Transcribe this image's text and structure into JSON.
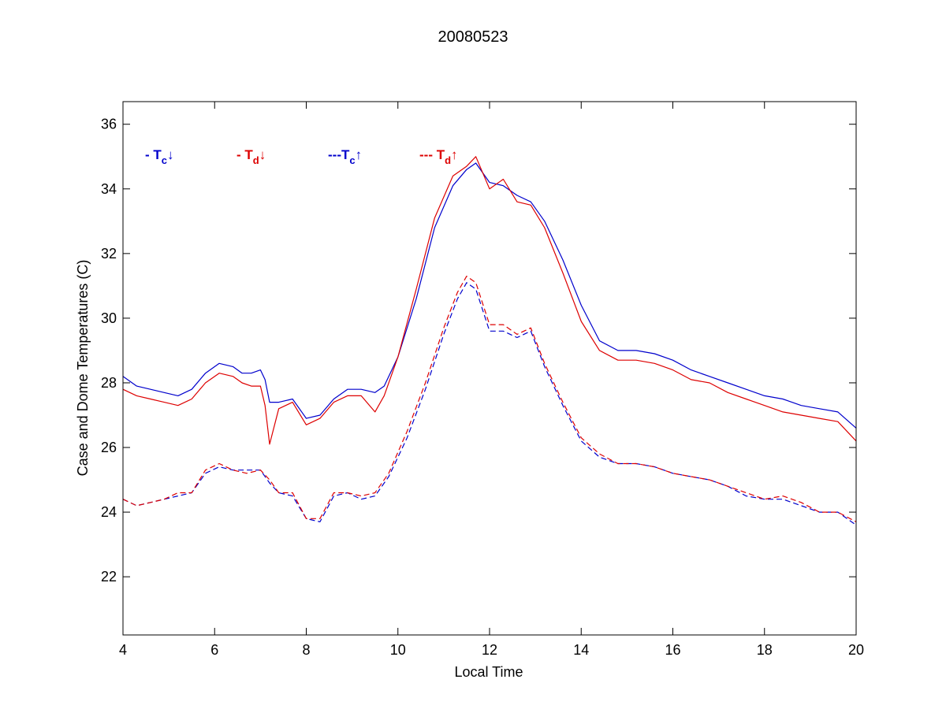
{
  "chart_data": {
    "type": "line",
    "title": "20080523",
    "xlabel": "Local Time",
    "ylabel": "Case and Dome Temperatures (C)",
    "xlim": [
      4,
      20
    ],
    "ylim": [
      20.2,
      36.7
    ],
    "xticks": [
      4,
      6,
      8,
      10,
      12,
      14,
      16,
      18,
      20
    ],
    "yticks": [
      22,
      24,
      26,
      28,
      30,
      32,
      34,
      36
    ],
    "grid": false,
    "legend_placement": "top-left inside",
    "series": [
      {
        "legend": {
          "prefix": "- T",
          "sub": "c",
          "arrow": "↓"
        },
        "color": "#0000cc",
        "dash": "solid",
        "x": [
          4.0,
          4.3,
          4.6,
          4.9,
          5.2,
          5.5,
          5.8,
          6.1,
          6.4,
          6.6,
          6.8,
          7.0,
          7.1,
          7.2,
          7.4,
          7.7,
          8.0,
          8.3,
          8.6,
          8.9,
          9.2,
          9.5,
          9.7,
          10.0,
          10.4,
          10.8,
          11.2,
          11.5,
          11.7,
          12.0,
          12.3,
          12.6,
          12.9,
          13.2,
          13.6,
          14.0,
          14.4,
          14.8,
          15.2,
          15.6,
          16.0,
          16.4,
          16.8,
          17.2,
          17.6,
          18.0,
          18.4,
          18.8,
          19.2,
          19.6,
          20.0
        ],
        "y": [
          28.2,
          27.9,
          27.8,
          27.7,
          27.6,
          27.8,
          28.3,
          28.6,
          28.5,
          28.3,
          28.3,
          28.4,
          28.1,
          27.4,
          27.4,
          27.5,
          26.9,
          27.0,
          27.5,
          27.8,
          27.8,
          27.7,
          27.9,
          28.8,
          30.6,
          32.8,
          34.1,
          34.6,
          34.8,
          34.2,
          34.1,
          33.8,
          33.6,
          33.0,
          31.8,
          30.4,
          29.3,
          29.0,
          29.0,
          28.9,
          28.7,
          28.4,
          28.2,
          28.0,
          27.8,
          27.6,
          27.5,
          27.3,
          27.2,
          27.1,
          26.6
        ]
      },
      {
        "legend": {
          "prefix": "- T",
          "sub": "d",
          "arrow": "↓"
        },
        "color": "#dd0000",
        "dash": "solid",
        "x": [
          4.0,
          4.3,
          4.6,
          4.9,
          5.2,
          5.5,
          5.8,
          6.1,
          6.4,
          6.6,
          6.8,
          7.0,
          7.1,
          7.2,
          7.4,
          7.7,
          8.0,
          8.3,
          8.6,
          8.9,
          9.2,
          9.5,
          9.7,
          10.0,
          10.4,
          10.8,
          11.2,
          11.5,
          11.7,
          12.0,
          12.3,
          12.6,
          12.9,
          13.2,
          13.6,
          14.0,
          14.4,
          14.8,
          15.2,
          15.6,
          16.0,
          16.4,
          16.8,
          17.2,
          17.6,
          18.0,
          18.4,
          18.8,
          19.2,
          19.6,
          20.0
        ],
        "y": [
          27.8,
          27.6,
          27.5,
          27.4,
          27.3,
          27.5,
          28.0,
          28.3,
          28.2,
          28.0,
          27.9,
          27.9,
          27.3,
          26.1,
          27.2,
          27.4,
          26.7,
          26.9,
          27.4,
          27.6,
          27.6,
          27.1,
          27.6,
          28.8,
          30.9,
          33.1,
          34.4,
          34.7,
          35.0,
          34.0,
          34.3,
          33.6,
          33.5,
          32.8,
          31.4,
          29.9,
          29.0,
          28.7,
          28.7,
          28.6,
          28.4,
          28.1,
          28.0,
          27.7,
          27.5,
          27.3,
          27.1,
          27.0,
          26.9,
          26.8,
          26.2
        ]
      },
      {
        "legend": {
          "prefix": "---T",
          "sub": "c",
          "arrow": "↑"
        },
        "color": "#0000cc",
        "dash": "dashed",
        "x": [
          4.0,
          4.3,
          4.6,
          4.9,
          5.2,
          5.5,
          5.8,
          6.1,
          6.4,
          6.7,
          7.0,
          7.2,
          7.4,
          7.7,
          8.0,
          8.3,
          8.6,
          8.9,
          9.2,
          9.5,
          9.8,
          10.2,
          10.6,
          11.0,
          11.3,
          11.5,
          11.7,
          12.0,
          12.3,
          12.6,
          12.9,
          13.2,
          13.6,
          14.0,
          14.4,
          14.8,
          15.2,
          15.6,
          16.0,
          16.4,
          16.8,
          17.2,
          17.6,
          18.0,
          18.4,
          18.8,
          19.2,
          19.6,
          20.0
        ],
        "y": [
          24.4,
          24.2,
          24.3,
          24.4,
          24.5,
          24.6,
          25.2,
          25.4,
          25.3,
          25.3,
          25.3,
          24.9,
          24.6,
          24.5,
          23.8,
          23.7,
          24.5,
          24.6,
          24.4,
          24.5,
          25.1,
          26.3,
          27.8,
          29.5,
          30.6,
          31.1,
          30.9,
          29.6,
          29.6,
          29.4,
          29.6,
          28.5,
          27.3,
          26.2,
          25.7,
          25.5,
          25.5,
          25.4,
          25.2,
          25.1,
          25.0,
          24.8,
          24.5,
          24.4,
          24.4,
          24.2,
          24.0,
          24.0,
          23.6
        ]
      },
      {
        "legend": {
          "prefix": "--- T",
          "sub": "d",
          "arrow": "↑"
        },
        "color": "#dd0000",
        "dash": "dashed",
        "x": [
          4.0,
          4.3,
          4.6,
          4.9,
          5.2,
          5.5,
          5.8,
          6.1,
          6.4,
          6.7,
          7.0,
          7.2,
          7.4,
          7.7,
          8.0,
          8.3,
          8.6,
          8.9,
          9.2,
          9.5,
          9.8,
          10.2,
          10.6,
          11.0,
          11.3,
          11.5,
          11.7,
          12.0,
          12.3,
          12.6,
          12.9,
          13.2,
          13.6,
          14.0,
          14.4,
          14.8,
          15.2,
          15.6,
          16.0,
          16.4,
          16.8,
          17.2,
          17.6,
          18.0,
          18.4,
          18.8,
          19.2,
          19.6,
          20.0
        ],
        "y": [
          24.4,
          24.2,
          24.3,
          24.4,
          24.6,
          24.6,
          25.3,
          25.5,
          25.3,
          25.2,
          25.3,
          25.0,
          24.6,
          24.6,
          23.8,
          23.8,
          24.6,
          24.6,
          24.5,
          24.6,
          25.2,
          26.5,
          28.0,
          29.7,
          30.8,
          31.3,
          31.1,
          29.8,
          29.8,
          29.5,
          29.7,
          28.6,
          27.4,
          26.3,
          25.8,
          25.5,
          25.5,
          25.4,
          25.2,
          25.1,
          25.0,
          24.8,
          24.6,
          24.4,
          24.5,
          24.3,
          24.0,
          24.0,
          23.7
        ]
      }
    ]
  }
}
